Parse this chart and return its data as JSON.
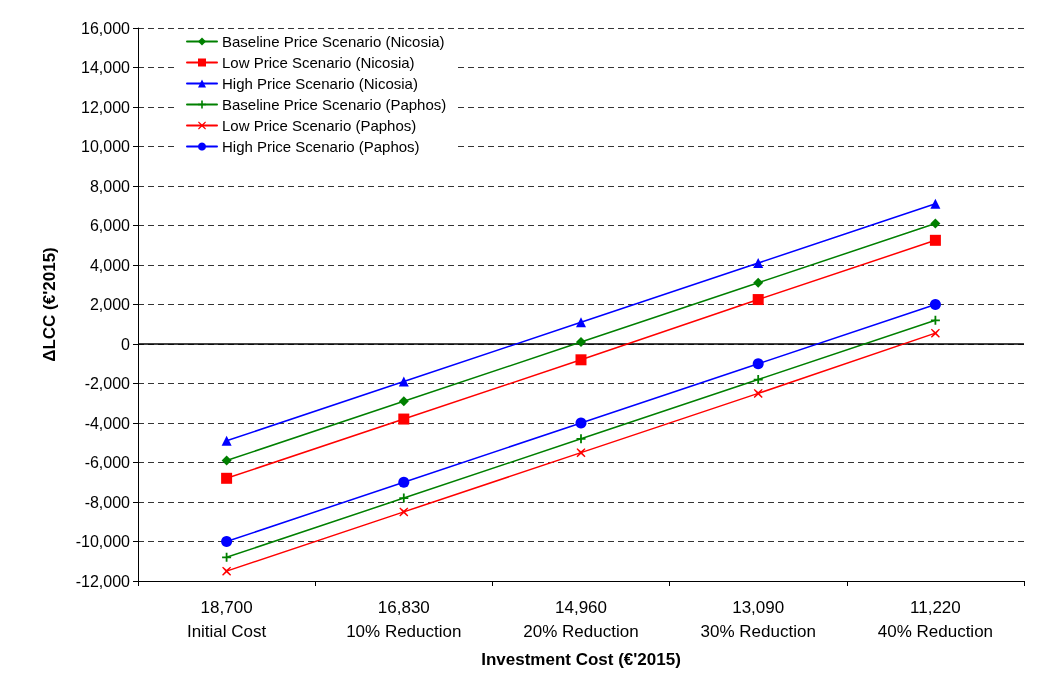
{
  "chart_data": {
    "type": "line",
    "xlabel": "Investment Cost (€'2015)",
    "ylabel": "ΔLCC (€'2015)",
    "categories": [
      "18,700\nInitial Cost",
      "16,830\n10% Reduction",
      "14,960\n20% Reduction",
      "13,090\n30% Reduction",
      "11,220\n40% Reduction"
    ],
    "series": [
      {
        "name": "Baseline Price Scenario (Nicosia)",
        "color": "#008000",
        "marker": "diamond",
        "values": [
          -5900,
          -2900,
          100,
          3100,
          6100
        ]
      },
      {
        "name": "Low Price Scenario (Nicosia)",
        "color": "#ff0000",
        "marker": "square",
        "values": [
          -6800,
          -3800,
          -800,
          2250,
          5250
        ]
      },
      {
        "name": "High Price Scenario (Nicosia)",
        "color": "#0000ff",
        "marker": "triangle",
        "values": [
          -4900,
          -1900,
          1100,
          4100,
          7100
        ]
      },
      {
        "name": "Baseline Price Scenario (Paphos)",
        "color": "#008000",
        "marker": "plus",
        "values": [
          -10800,
          -7800,
          -4800,
          -1800,
          1200
        ]
      },
      {
        "name": "Low Price Scenario (Paphos)",
        "color": "#ff0000",
        "marker": "cross",
        "values": [
          -11500,
          -8500,
          -5500,
          -2500,
          550
        ]
      },
      {
        "name": "High Price Scenario (Paphos)",
        "color": "#0000ff",
        "marker": "circle",
        "values": [
          -10000,
          -7000,
          -4000,
          -1000,
          2000
        ]
      }
    ],
    "ylim": [
      -12000,
      16000
    ],
    "yticks": [
      {
        "value": -12000,
        "label": "-12,000"
      },
      {
        "value": -10000,
        "label": "-10,000"
      },
      {
        "value": -8000,
        "label": "-8,000"
      },
      {
        "value": -6000,
        "label": "-6,000"
      },
      {
        "value": -4000,
        "label": "-4,000"
      },
      {
        "value": -2000,
        "label": "-2,000"
      },
      0,
      {
        "value": 2000,
        "label": "2,000"
      },
      {
        "value": 4000,
        "label": "4,000"
      },
      {
        "value": 6000,
        "label": "6,000"
      },
      {
        "value": 8000,
        "label": "8,000"
      },
      {
        "value": 10000,
        "label": "10,000"
      },
      {
        "value": 12000,
        "label": "12,000"
      },
      {
        "value": 14000,
        "label": "14,000"
      },
      {
        "value": 16000,
        "label": "16,000"
      }
    ],
    "grid": "y",
    "legend": "top left",
    "line_style": "solid",
    "ref_lines": [
      {
        "axis": "y",
        "value": 0,
        "color": "#000000",
        "line_style": "solid"
      }
    ]
  }
}
